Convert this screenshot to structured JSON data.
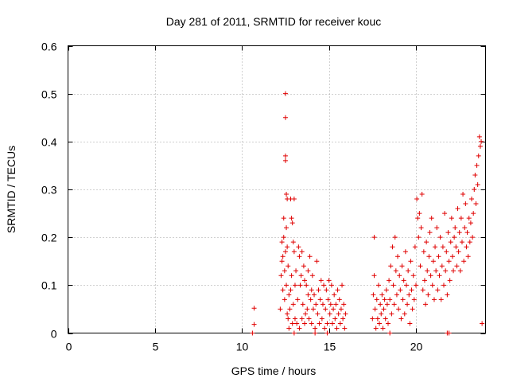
{
  "chart_data": {
    "type": "scatter",
    "title": "Day 281 of 2011, SRMTID for receiver kouc",
    "xlabel": "GPS time / hours",
    "ylabel": "SRMTID / TECUs",
    "xlim": [
      0,
      24
    ],
    "ylim": [
      0,
      0.6
    ],
    "xticks": [
      0,
      5,
      10,
      15,
      20
    ],
    "yticks": [
      0,
      0.1,
      0.2,
      0.3,
      0.4,
      0.5,
      0.6
    ],
    "xtick_labels": [
      "0",
      "5",
      "10",
      "15",
      "20"
    ],
    "ytick_labels": [
      "0",
      "0.1",
      "0.2",
      "0.3",
      "0.4",
      "0.5",
      "0.6"
    ],
    "grid": true,
    "marker": "+",
    "color": "#e00000",
    "series": [
      {
        "name": "SRMTID",
        "points": [
          [
            10.7,
            0.052
          ],
          [
            10.7,
            0.018
          ],
          [
            10.6,
            0.0
          ],
          [
            12.2,
            0.05
          ],
          [
            12.25,
            0.12
          ],
          [
            12.3,
            0.15
          ],
          [
            12.3,
            0.19
          ],
          [
            12.35,
            0.16
          ],
          [
            12.35,
            0.09
          ],
          [
            12.4,
            0.2
          ],
          [
            12.4,
            0.24
          ],
          [
            12.45,
            0.13
          ],
          [
            12.45,
            0.07
          ],
          [
            12.5,
            0.17
          ],
          [
            12.5,
            0.5
          ],
          [
            12.5,
            0.45
          ],
          [
            12.5,
            0.37
          ],
          [
            12.5,
            0.36
          ],
          [
            12.55,
            0.29
          ],
          [
            12.55,
            0.22
          ],
          [
            12.55,
            0.1
          ],
          [
            12.6,
            0.28
          ],
          [
            12.6,
            0.18
          ],
          [
            12.6,
            0.04
          ],
          [
            12.65,
            0.03
          ],
          [
            12.65,
            0.14
          ],
          [
            12.7,
            0.08
          ],
          [
            12.7,
            0.01
          ],
          [
            12.75,
            0.05
          ],
          [
            12.8,
            0.09
          ],
          [
            12.8,
            0.28
          ],
          [
            12.85,
            0.24
          ],
          [
            12.85,
            0.12
          ],
          [
            12.9,
            0.23
          ],
          [
            12.9,
            0.02
          ],
          [
            12.95,
            0.19
          ],
          [
            12.95,
            0.06
          ],
          [
            13.0,
            0.28
          ],
          [
            13.0,
            0.17
          ],
          [
            13.05,
            0.1
          ],
          [
            13.05,
            0.03
          ],
          [
            13.1,
            0.13
          ],
          [
            13.15,
            0.02
          ],
          [
            13.2,
            0.07
          ],
          [
            13.25,
            0.18
          ],
          [
            13.3,
            0.16
          ],
          [
            13.3,
            0.01
          ],
          [
            13.35,
            0.1
          ],
          [
            13.4,
            0.12
          ],
          [
            13.45,
            0.03
          ],
          [
            13.45,
            0.17
          ],
          [
            13.5,
            0.06
          ],
          [
            13.55,
            0.14
          ],
          [
            13.6,
            0.11
          ],
          [
            13.6,
            0.02
          ],
          [
            13.65,
            0.04
          ],
          [
            13.7,
            0.1
          ],
          [
            13.75,
            0.05
          ],
          [
            13.8,
            0.08
          ],
          [
            13.8,
            0.13
          ],
          [
            13.85,
            0.03
          ],
          [
            13.9,
            0.16
          ],
          [
            13.95,
            0.07
          ],
          [
            14.0,
            0.02
          ],
          [
            14.0,
            0.09
          ],
          [
            14.05,
            0.12
          ],
          [
            14.1,
            0.05
          ],
          [
            14.15,
            0.08
          ],
          [
            14.2,
            0.01
          ],
          [
            14.25,
            0.06
          ],
          [
            14.3,
            0.15
          ],
          [
            14.35,
            0.04
          ],
          [
            14.4,
            0.09
          ],
          [
            14.45,
            0.02
          ],
          [
            14.5,
            0.07
          ],
          [
            14.55,
            0.11
          ],
          [
            14.6,
            0.03
          ],
          [
            14.65,
            0.06
          ],
          [
            14.7,
            0.1
          ],
          [
            14.75,
            0.01
          ],
          [
            14.8,
            0.05
          ],
          [
            14.85,
            0.09
          ],
          [
            14.9,
            0.02
          ],
          [
            14.95,
            0.07
          ],
          [
            15.0,
            0.11
          ],
          [
            15.05,
            0.04
          ],
          [
            15.1,
            0.06
          ],
          [
            15.15,
            0.1
          ],
          [
            15.2,
            0.02
          ],
          [
            15.25,
            0.05
          ],
          [
            15.3,
            0.08
          ],
          [
            15.35,
            0.03
          ],
          [
            15.4,
            0.06
          ],
          [
            15.45,
            0.01
          ],
          [
            15.5,
            0.09
          ],
          [
            15.55,
            0.04
          ],
          [
            15.6,
            0.07
          ],
          [
            15.65,
            0.02
          ],
          [
            15.7,
            0.05
          ],
          [
            15.75,
            0.1
          ],
          [
            15.8,
            0.03
          ],
          [
            15.85,
            0.06
          ],
          [
            15.9,
            0.01
          ],
          [
            15.95,
            0.04
          ],
          [
            14.2,
            0.0
          ],
          [
            14.9,
            0.0
          ],
          [
            13.0,
            0.0
          ],
          [
            17.5,
            0.03
          ],
          [
            17.55,
            0.08
          ],
          [
            17.6,
            0.2
          ],
          [
            17.6,
            0.12
          ],
          [
            17.65,
            0.05
          ],
          [
            17.7,
            0.01
          ],
          [
            17.75,
            0.07
          ],
          [
            17.8,
            0.03
          ],
          [
            17.85,
            0.1
          ],
          [
            17.9,
            0.02
          ],
          [
            17.95,
            0.06
          ],
          [
            18.0,
            0.04
          ],
          [
            18.05,
            0.08
          ],
          [
            18.1,
            0.01
          ],
          [
            18.15,
            0.05
          ],
          [
            18.2,
            0.07
          ],
          [
            18.25,
            0.03
          ],
          [
            18.3,
            0.09
          ],
          [
            18.35,
            0.06
          ],
          [
            18.4,
            0.02
          ],
          [
            18.45,
            0.11
          ],
          [
            18.5,
            0.07
          ],
          [
            18.55,
            0.14
          ],
          [
            18.6,
            0.04
          ],
          [
            18.65,
            0.18
          ],
          [
            18.7,
            0.1
          ],
          [
            18.75,
            0.06
          ],
          [
            18.8,
            0.2
          ],
          [
            18.85,
            0.13
          ],
          [
            18.9,
            0.08
          ],
          [
            18.95,
            0.16
          ],
          [
            19.0,
            0.05
          ],
          [
            19.05,
            0.12
          ],
          [
            19.1,
            0.09
          ],
          [
            19.15,
            0.03
          ],
          [
            19.2,
            0.14
          ],
          [
            19.25,
            0.07
          ],
          [
            19.3,
            0.11
          ],
          [
            19.35,
            0.04
          ],
          [
            19.4,
            0.17
          ],
          [
            19.45,
            0.1
          ],
          [
            19.5,
            0.06
          ],
          [
            19.55,
            0.13
          ],
          [
            19.6,
            0.08
          ],
          [
            19.65,
            0.02
          ],
          [
            19.7,
            0.15
          ],
          [
            19.75,
            0.09
          ],
          [
            19.8,
            0.05
          ],
          [
            19.85,
            0.12
          ],
          [
            19.9,
            0.07
          ],
          [
            19.95,
            0.18
          ],
          [
            20.0,
            0.1
          ],
          [
            20.05,
            0.28
          ],
          [
            20.1,
            0.24
          ],
          [
            20.15,
            0.2
          ],
          [
            20.2,
            0.25
          ],
          [
            20.25,
            0.14
          ],
          [
            20.3,
            0.22
          ],
          [
            20.35,
            0.29
          ],
          [
            20.4,
            0.09
          ],
          [
            20.45,
            0.17
          ],
          [
            20.5,
            0.11
          ],
          [
            20.55,
            0.06
          ],
          [
            20.6,
            0.19
          ],
          [
            20.65,
            0.13
          ],
          [
            20.7,
            0.08
          ],
          [
            20.75,
            0.16
          ],
          [
            20.8,
            0.21
          ],
          [
            20.85,
            0.12
          ],
          [
            20.9,
            0.24
          ],
          [
            20.95,
            0.1
          ],
          [
            21.0,
            0.15
          ],
          [
            21.05,
            0.07
          ],
          [
            21.1,
            0.18
          ],
          [
            21.15,
            0.13
          ],
          [
            21.2,
            0.22
          ],
          [
            21.25,
            0.09
          ],
          [
            21.3,
            0.16
          ],
          [
            21.35,
            0.12
          ],
          [
            21.4,
            0.2
          ],
          [
            21.45,
            0.07
          ],
          [
            21.5,
            0.14
          ],
          [
            21.55,
            0.18
          ],
          [
            21.6,
            0.1
          ],
          [
            21.65,
            0.25
          ],
          [
            21.7,
            0.13
          ],
          [
            21.75,
            0.17
          ],
          [
            21.8,
            0.08
          ],
          [
            21.85,
            0.21
          ],
          [
            21.9,
            0.15
          ],
          [
            21.95,
            0.11
          ],
          [
            22.0,
            0.19
          ],
          [
            22.05,
            0.24
          ],
          [
            22.1,
            0.16
          ],
          [
            22.15,
            0.13
          ],
          [
            22.2,
            0.2
          ],
          [
            22.25,
            0.22
          ],
          [
            22.3,
            0.18
          ],
          [
            22.35,
            0.14
          ],
          [
            22.4,
            0.26
          ],
          [
            22.45,
            0.17
          ],
          [
            22.5,
            0.21
          ],
          [
            22.55,
            0.13
          ],
          [
            22.6,
            0.24
          ],
          [
            22.65,
            0.19
          ],
          [
            22.7,
            0.29
          ],
          [
            22.75,
            0.15
          ],
          [
            22.8,
            0.22
          ],
          [
            22.85,
            0.27
          ],
          [
            22.9,
            0.18
          ],
          [
            22.95,
            0.21
          ],
          [
            23.0,
            0.16
          ],
          [
            23.05,
            0.24
          ],
          [
            23.1,
            0.19
          ],
          [
            23.15,
            0.23
          ],
          [
            23.2,
            0.28
          ],
          [
            23.25,
            0.2
          ],
          [
            23.3,
            0.25
          ],
          [
            23.35,
            0.3
          ],
          [
            23.4,
            0.33
          ],
          [
            23.45,
            0.27
          ],
          [
            23.5,
            0.35
          ],
          [
            23.55,
            0.31
          ],
          [
            23.6,
            0.37
          ],
          [
            23.65,
            0.41
          ],
          [
            23.7,
            0.39
          ],
          [
            23.75,
            0.4
          ],
          [
            23.8,
            0.02
          ],
          [
            18.5,
            0.0
          ],
          [
            21.9,
            0.0
          ],
          [
            21.8,
            0.0
          ]
        ]
      }
    ]
  }
}
